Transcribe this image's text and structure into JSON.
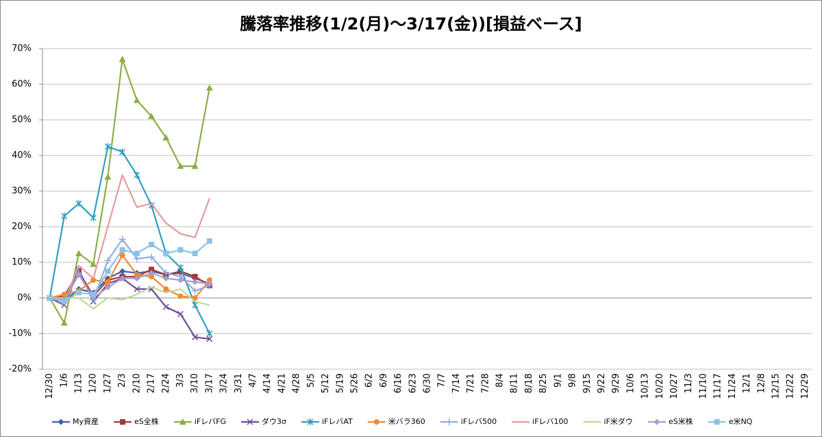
{
  "chart_data": {
    "type": "line",
    "title": "騰落率推移(1/2(月)～3/17(金))[損益ベース]",
    "categories": [
      "12/30",
      "1/6",
      "1/13",
      "1/20",
      "1/27",
      "2/3",
      "2/10",
      "2/17",
      "2/24",
      "3/3",
      "3/10",
      "3/17",
      "3/24",
      "3/31",
      "4/7",
      "4/14",
      "4/21",
      "4/28",
      "5/5",
      "5/12",
      "5/19",
      "5/26",
      "6/2",
      "6/9",
      "6/16",
      "6/23",
      "6/30",
      "7/7",
      "7/14",
      "7/21",
      "7/28",
      "8/4",
      "8/11",
      "8/18",
      "8/25",
      "9/1",
      "9/8",
      "9/15",
      "9/22",
      "9/29",
      "10/6",
      "10/13",
      "10/20",
      "10/27",
      "11/3",
      "11/10",
      "11/17",
      "11/24",
      "12/1",
      "12/8",
      "12/15",
      "12/22",
      "12/29"
    ],
    "ylim": [
      -20,
      70
    ],
    "yticks": [
      {
        "value": -20,
        "label": "-20%"
      },
      {
        "value": -10,
        "label": "-10%"
      },
      {
        "value": 0,
        "label": "0%"
      },
      {
        "value": 10,
        "label": "10%"
      },
      {
        "value": 20,
        "label": "20%"
      },
      {
        "value": 30,
        "label": "30%"
      },
      {
        "value": 40,
        "label": "40%"
      },
      {
        "value": 50,
        "label": "50%"
      },
      {
        "value": 60,
        "label": "60%"
      },
      {
        "value": 70,
        "label": "70%"
      }
    ],
    "grid": true,
    "legend": "bottom",
    "series": [
      {
        "name": "My資産",
        "color": "#3b64a8",
        "marker": "diamond",
        "values": [
          0,
          -1,
          2.5,
          1.5,
          5.5,
          7.5,
          7,
          7.5,
          6.5,
          7,
          5.5,
          4,
          null,
          null,
          null,
          null,
          null,
          null,
          null,
          null,
          null,
          null,
          null,
          null,
          null,
          null,
          null,
          null,
          null,
          null,
          null,
          null,
          null,
          null,
          null,
          null,
          null,
          null,
          null,
          null,
          null,
          null,
          null,
          null,
          null,
          null,
          null,
          null,
          null,
          null,
          null,
          null,
          null
        ]
      },
      {
        "name": "eS全株",
        "color": "#a33a3a",
        "marker": "square",
        "values": [
          0,
          0.5,
          7.5,
          0.5,
          5,
          6,
          6,
          8,
          6.5,
          7.5,
          6,
          3.5,
          null,
          null,
          null,
          null,
          null,
          null,
          null,
          null,
          null,
          null,
          null,
          null,
          null,
          null,
          null,
          null,
          null,
          null,
          null,
          null,
          null,
          null,
          null,
          null,
          null,
          null,
          null,
          null,
          null,
          null,
          null,
          null,
          null,
          null,
          null,
          null,
          null,
          null,
          null,
          null,
          null
        ]
      },
      {
        "name": "iFレバFG",
        "color": "#8aaf43",
        "marker": "triangle",
        "values": [
          0,
          -7,
          12.5,
          9.5,
          34,
          67,
          55.5,
          51,
          45,
          37,
          37,
          59,
          null,
          null,
          null,
          null,
          null,
          null,
          null,
          null,
          null,
          null,
          null,
          null,
          null,
          null,
          null,
          null,
          null,
          null,
          null,
          null,
          null,
          null,
          null,
          null,
          null,
          null,
          null,
          null,
          null,
          null,
          null,
          null,
          null,
          null,
          null,
          null,
          null,
          null,
          null,
          null,
          null
        ]
      },
      {
        "name": "ダウ3σ",
        "color": "#6e4a9a",
        "marker": "x",
        "values": [
          0,
          -2,
          8,
          -1,
          4,
          5.5,
          2.5,
          2.5,
          -2.5,
          -4.5,
          -11,
          -11.5,
          null,
          null,
          null,
          null,
          null,
          null,
          null,
          null,
          null,
          null,
          null,
          null,
          null,
          null,
          null,
          null,
          null,
          null,
          null,
          null,
          null,
          null,
          null,
          null,
          null,
          null,
          null,
          null,
          null,
          null,
          null,
          null,
          null,
          null,
          null,
          null,
          null,
          null,
          null,
          null,
          null
        ]
      },
      {
        "name": "iFレバAT",
        "color": "#2f9ec0",
        "marker": "star",
        "values": [
          0,
          23,
          26.5,
          22.5,
          42.5,
          41,
          34.5,
          26,
          12.5,
          8.5,
          -2,
          -10,
          null,
          null,
          null,
          null,
          null,
          null,
          null,
          null,
          null,
          null,
          null,
          null,
          null,
          null,
          null,
          null,
          null,
          null,
          null,
          null,
          null,
          null,
          null,
          null,
          null,
          null,
          null,
          null,
          null,
          null,
          null,
          null,
          null,
          null,
          null,
          null,
          null,
          null,
          null,
          null,
          null
        ]
      },
      {
        "name": "米バラ360",
        "color": "#ef8a33",
        "marker": "circle",
        "values": [
          0,
          1,
          2,
          5,
          4.5,
          12,
          6.5,
          6,
          2.5,
          0.5,
          0,
          5,
          null,
          null,
          null,
          null,
          null,
          null,
          null,
          null,
          null,
          null,
          null,
          null,
          null,
          null,
          null,
          null,
          null,
          null,
          null,
          null,
          null,
          null,
          null,
          null,
          null,
          null,
          null,
          null,
          null,
          null,
          null,
          null,
          null,
          null,
          null,
          null,
          null,
          null,
          null,
          null,
          null
        ]
      },
      {
        "name": "iFレバ500",
        "color": "#8eaee0",
        "marker": "plus",
        "values": [
          0,
          -1,
          7,
          -0.5,
          10.5,
          16.5,
          11,
          11.5,
          7,
          6,
          2,
          3.5,
          null,
          null,
          null,
          null,
          null,
          null,
          null,
          null,
          null,
          null,
          null,
          null,
          null,
          null,
          null,
          null,
          null,
          null,
          null,
          null,
          null,
          null,
          null,
          null,
          null,
          null,
          null,
          null,
          null,
          null,
          null,
          null,
          null,
          null,
          null,
          null,
          null,
          null,
          null,
          null,
          null
        ]
      },
      {
        "name": "iFレバ100",
        "color": "#e29c9a",
        "marker": "none",
        "values": [
          0,
          -1,
          9,
          5.5,
          20,
          34.5,
          25.5,
          26.5,
          21,
          18,
          17,
          28,
          null,
          null,
          null,
          null,
          null,
          null,
          null,
          null,
          null,
          null,
          null,
          null,
          null,
          null,
          null,
          null,
          null,
          null,
          null,
          null,
          null,
          null,
          null,
          null,
          null,
          null,
          null,
          null,
          null,
          null,
          null,
          null,
          null,
          null,
          null,
          null,
          null,
          null,
          null,
          null,
          null
        ]
      },
      {
        "name": "iF米ダウ",
        "color": "#bcd99a",
        "marker": "none",
        "values": [
          0,
          0,
          0,
          -3,
          0,
          -0.5,
          1,
          3,
          1.5,
          2.5,
          -1,
          -2,
          null,
          null,
          null,
          null,
          null,
          null,
          null,
          null,
          null,
          null,
          null,
          null,
          null,
          null,
          null,
          null,
          null,
          null,
          null,
          null,
          null,
          null,
          null,
          null,
          null,
          null,
          null,
          null,
          null,
          null,
          null,
          null,
          null,
          null,
          null,
          null,
          null,
          null,
          null,
          null,
          null
        ]
      },
      {
        "name": "eS米株",
        "color": "#a99bcb",
        "marker": "diamond",
        "values": [
          0,
          -0.5,
          6.5,
          0,
          3,
          5.5,
          5.5,
          7,
          5.5,
          5,
          4.5,
          4,
          null,
          null,
          null,
          null,
          null,
          null,
          null,
          null,
          null,
          null,
          null,
          null,
          null,
          null,
          null,
          null,
          null,
          null,
          null,
          null,
          null,
          null,
          null,
          null,
          null,
          null,
          null,
          null,
          null,
          null,
          null,
          null,
          null,
          null,
          null,
          null,
          null,
          null,
          null,
          null,
          null
        ]
      },
      {
        "name": "e米NQ",
        "color": "#8cc3e3",
        "marker": "square",
        "values": [
          0,
          -1,
          1.5,
          1,
          7.5,
          13.5,
          12.5,
          15,
          12.5,
          13.5,
          12.5,
          16,
          null,
          null,
          null,
          null,
          null,
          null,
          null,
          null,
          null,
          null,
          null,
          null,
          null,
          null,
          null,
          null,
          null,
          null,
          null,
          null,
          null,
          null,
          null,
          null,
          null,
          null,
          null,
          null,
          null,
          null,
          null,
          null,
          null,
          null,
          null,
          null,
          null,
          null,
          null,
          null,
          null
        ]
      }
    ]
  }
}
